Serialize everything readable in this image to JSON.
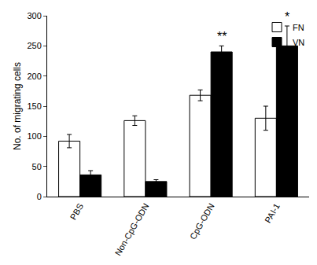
{
  "chart_data": {
    "type": "bar",
    "y_label": "No. of migrating cells",
    "categories": [
      "PBS",
      "Non-CpG-ODN",
      "CpG-ODN",
      "PAI-1"
    ],
    "series": [
      {
        "name": "FN",
        "color": "#ffffff",
        "values": [
          92,
          126,
          168,
          130
        ],
        "error": [
          11,
          8,
          9,
          20
        ]
      },
      {
        "name": "VN",
        "color": "#000000",
        "values": [
          36,
          25,
          240,
          250
        ],
        "error": [
          7,
          3,
          10,
          33
        ]
      }
    ],
    "annotations": [
      {
        "category": "CpG-ODN",
        "series": "VN",
        "text": "**"
      },
      {
        "category": "PAI-1",
        "series": "VN",
        "text": "*"
      }
    ],
    "ylim": [
      0,
      300
    ],
    "yticks": [
      0,
      50,
      100,
      150,
      200,
      250,
      300
    ],
    "grid": false,
    "legend": "top right"
  }
}
